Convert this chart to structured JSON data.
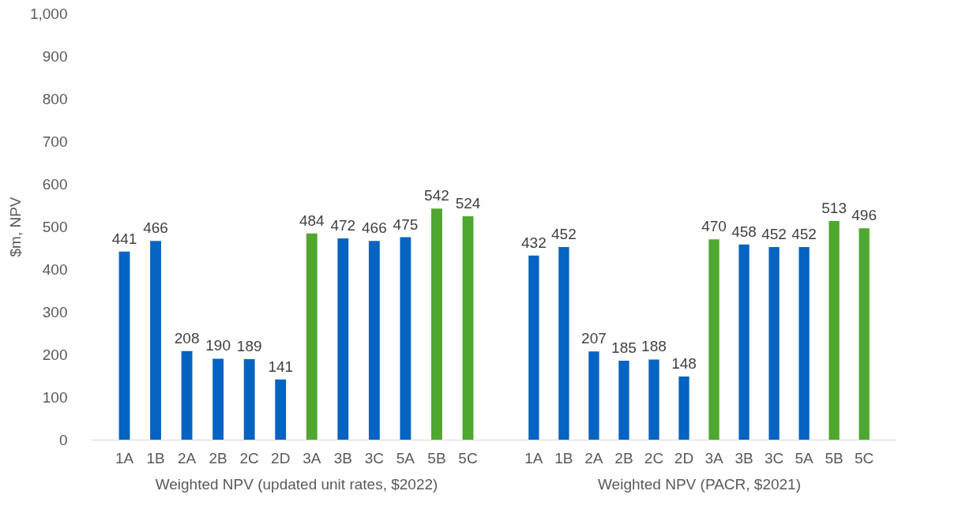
{
  "chart_data": [
    {
      "type": "bar",
      "xlabel": "Weighted NPV (updated unit rates, $2022)",
      "ylabel": "$m, NPV",
      "categories": [
        "1A",
        "1B",
        "2A",
        "2B",
        "2C",
        "2D",
        "3A",
        "3B",
        "3C",
        "5A",
        "5B",
        "5C"
      ],
      "values": [
        441,
        466,
        208,
        190,
        189,
        141,
        484,
        472,
        466,
        475,
        542,
        524
      ],
      "colors": [
        "#0563c1",
        "#0563c1",
        "#0563c1",
        "#0563c1",
        "#0563c1",
        "#0563c1",
        "#4ea72e",
        "#0563c1",
        "#0563c1",
        "#0563c1",
        "#4ea72e",
        "#4ea72e"
      ],
      "ylim": [
        0,
        1000
      ],
      "yticks": [
        0,
        100,
        200,
        300,
        400,
        500,
        600,
        700,
        800,
        900,
        {
          "value": 1000,
          "label": "1,000"
        }
      ],
      "data_labels": true,
      "grid": false
    },
    {
      "type": "bar",
      "xlabel": "Weighted NPV (PACR, $2021)",
      "categories": [
        "1A",
        "1B",
        "2A",
        "2B",
        "2C",
        "2D",
        "3A",
        "3B",
        "3C",
        "5A",
        "5B",
        "5C"
      ],
      "values": [
        432,
        452,
        207,
        185,
        188,
        148,
        470,
        458,
        452,
        452,
        513,
        496
      ],
      "colors": [
        "#0563c1",
        "#0563c1",
        "#0563c1",
        "#0563c1",
        "#0563c1",
        "#0563c1",
        "#4ea72e",
        "#0563c1",
        "#0563c1",
        "#0563c1",
        "#4ea72e",
        "#4ea72e"
      ],
      "ylim": [
        0,
        1000
      ],
      "tick_labels": "x",
      "data_labels": true,
      "grid": false
    }
  ]
}
